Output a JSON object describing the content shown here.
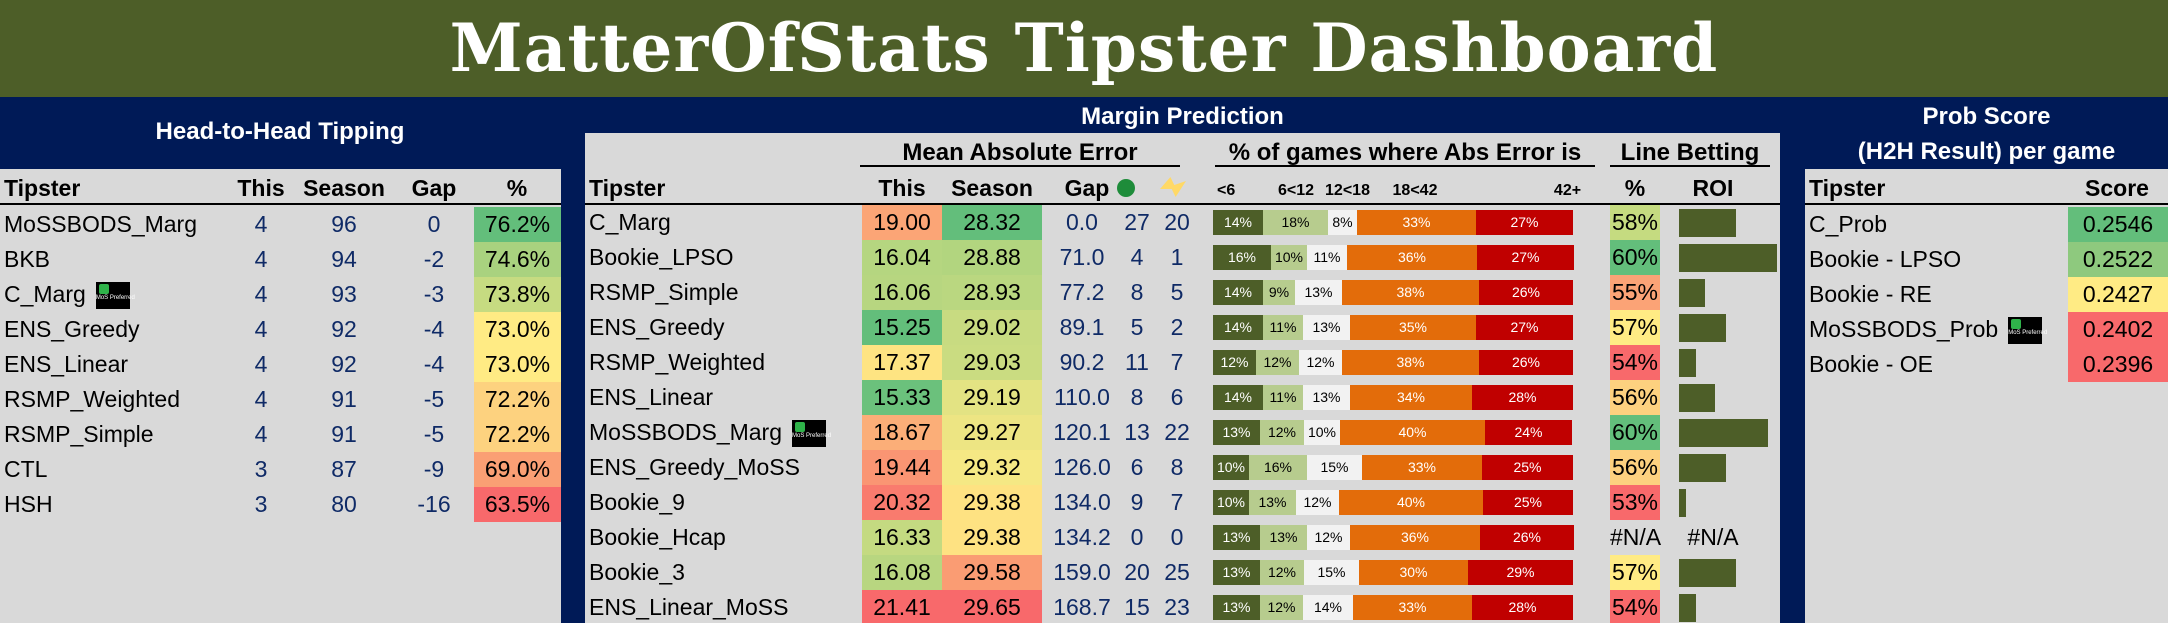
{
  "title": "MatterOfStats Tipster Dashboard",
  "h2h": {
    "section_title": "Head-to-Head Tipping",
    "headers": {
      "tipster": "Tipster",
      "this": "This",
      "season": "Season",
      "gap": "Gap",
      "pct": "%"
    },
    "rows": [
      {
        "tipster": "MoSSBODS_Marg",
        "this": "4",
        "season": "96",
        "gap": "0",
        "pct": "76.2%",
        "color": "#63be7b"
      },
      {
        "tipster": "BKB",
        "this": "4",
        "season": "94",
        "gap": "-2",
        "pct": "74.6%",
        "color": "#a9d27f"
      },
      {
        "tipster": "C_Marg",
        "this": "4",
        "season": "93",
        "gap": "-3",
        "pct": "73.8%",
        "color": "#c6db81",
        "badge": true
      },
      {
        "tipster": "ENS_Greedy",
        "this": "4",
        "season": "92",
        "gap": "-4",
        "pct": "73.0%",
        "color": "#ffeb84"
      },
      {
        "tipster": "ENS_Linear",
        "this": "4",
        "season": "92",
        "gap": "-4",
        "pct": "73.0%",
        "color": "#ffeb84"
      },
      {
        "tipster": "RSMP_Weighted",
        "this": "4",
        "season": "91",
        "gap": "-5",
        "pct": "72.2%",
        "color": "#fdd27f"
      },
      {
        "tipster": "RSMP_Simple",
        "this": "4",
        "season": "91",
        "gap": "-5",
        "pct": "72.2%",
        "color": "#fdd27f"
      },
      {
        "tipster": "CTL",
        "this": "3",
        "season": "87",
        "gap": "-9",
        "pct": "69.0%",
        "color": "#fa9f74"
      },
      {
        "tipster": "HSH",
        "this": "3",
        "season": "80",
        "gap": "-16",
        "pct": "63.5%",
        "color": "#f8696b"
      }
    ]
  },
  "margin": {
    "section_title": "Margin Prediction",
    "group_mae": "Mean Absolute Error",
    "group_pct": "% of games where Abs Error is",
    "group_line": "Line Betting",
    "headers": {
      "tipster": "Tipster",
      "this": "This",
      "season": "Season",
      "gap": "Gap",
      "pct": "%",
      "roi": "ROI"
    },
    "bucket_labels": [
      "<6",
      "6<12",
      "12<18",
      "18<42",
      "42+"
    ],
    "bucket_colors": [
      "#4d5e28",
      "#b7cc8e",
      "#f2f2f2",
      "#e36c0a",
      "#c00000"
    ],
    "bucket_text_colors": [
      "#ffffff",
      "#000000",
      "#000000",
      "#ffffff",
      "#ffffff"
    ],
    "rows": [
      {
        "tipster": "C_Marg",
        "this": "19.00",
        "this_color": "#fba576",
        "season": "28.32",
        "season_color": "#63be7b",
        "gap": "0.0",
        "c1": "27",
        "c2": "20",
        "buckets": [
          14,
          18,
          8,
          33,
          27
        ],
        "pct": "58%",
        "pct_color": "#c5db80",
        "roi": 0.58
      },
      {
        "tipster": "Bookie_LPSO",
        "this": "16.04",
        "this_color": "#b5d680",
        "season": "28.88",
        "season_color": "#b2d57f",
        "gap": "71.0",
        "c1": "4",
        "c2": "1",
        "buckets": [
          16,
          10,
          11,
          36,
          27
        ],
        "pct": "60%",
        "pct_color": "#63be7b",
        "roi": 1.0
      },
      {
        "tipster": "RSMP_Simple",
        "this": "16.06",
        "this_color": "#b7d680",
        "season": "28.93",
        "season_color": "#bad780",
        "gap": "77.2",
        "c1": "8",
        "c2": "5",
        "buckets": [
          14,
          9,
          13,
          38,
          26
        ],
        "pct": "55%",
        "pct_color": "#fba376",
        "roi": 0.27
      },
      {
        "tipster": "ENS_Greedy",
        "this": "15.25",
        "this_color": "#63be7b",
        "season": "29.02",
        "season_color": "#c8db81",
        "gap": "89.1",
        "c1": "5",
        "c2": "2",
        "buckets": [
          14,
          11,
          13,
          35,
          27
        ],
        "pct": "57%",
        "pct_color": "#ffeb84",
        "roi": 0.48
      },
      {
        "tipster": "RSMP_Weighted",
        "this": "17.37",
        "this_color": "#fee482",
        "season": "29.03",
        "season_color": "#cadc81",
        "gap": "90.2",
        "c1": "11",
        "c2": "7",
        "buckets": [
          12,
          12,
          12,
          38,
          26
        ],
        "pct": "54%",
        "pct_color": "#f8696b",
        "roi": 0.17
      },
      {
        "tipster": "ENS_Linear",
        "this": "15.33",
        "this_color": "#6bc17c",
        "season": "29.19",
        "season_color": "#e3e383",
        "gap": "110.0",
        "c1": "8",
        "c2": "6",
        "buckets": [
          14,
          11,
          13,
          34,
          28
        ],
        "pct": "56%",
        "pct_color": "#fdd17f",
        "roi": 0.37
      },
      {
        "tipster": "MoSSBODS_Marg",
        "this": "18.67",
        "this_color": "#fbae78",
        "season": "29.27",
        "season_color": "#ede583",
        "gap": "120.1",
        "c1": "13",
        "c2": "22",
        "buckets": [
          13,
          12,
          10,
          40,
          24
        ],
        "pct": "60%",
        "pct_color": "#63be7b",
        "roi": 0.91,
        "badge": true
      },
      {
        "tipster": "ENS_Greedy_MoSS",
        "this": "19.44",
        "this_color": "#fa9573",
        "season": "29.32",
        "season_color": "#f5e884",
        "gap": "126.0",
        "c1": "6",
        "c2": "8",
        "buckets": [
          10,
          16,
          15,
          33,
          25
        ],
        "pct": "56%",
        "pct_color": "#fdd17f",
        "roi": 0.48
      },
      {
        "tipster": "Bookie_9",
        "this": "20.32",
        "this_color": "#f97b6e",
        "season": "29.38",
        "season_color": "#fee282",
        "gap": "134.0",
        "c1": "9",
        "c2": "7",
        "buckets": [
          10,
          13,
          12,
          40,
          25
        ],
        "pct": "53%",
        "pct_color": "#f8696b",
        "roi": 0.07
      },
      {
        "tipster": "Bookie_Hcap",
        "this": "16.33",
        "this_color": "#c4da81",
        "season": "29.38",
        "season_color": "#fee282",
        "gap": "134.2",
        "c1": "0",
        "c2": "0",
        "buckets": [
          13,
          13,
          12,
          36,
          26
        ],
        "pct": "#N/A",
        "pct_color": "",
        "roi": 0,
        "roi_text": "#N/A"
      },
      {
        "tipster": "Bookie_3",
        "this": "16.08",
        "this_color": "#b8d680",
        "season": "29.58",
        "season_color": "#fa9c73",
        "gap": "159.0",
        "c1": "20",
        "c2": "25",
        "buckets": [
          13,
          12,
          15,
          30,
          29
        ],
        "pct": "57%",
        "pct_color": "#ffeb84",
        "roi": 0.58
      },
      {
        "tipster": "ENS_Linear_MoSS",
        "this": "21.41",
        "this_color": "#f8696b",
        "season": "29.65",
        "season_color": "#f8696b",
        "gap": "168.7",
        "c1": "15",
        "c2": "23",
        "buckets": [
          13,
          12,
          14,
          33,
          28
        ],
        "pct": "54%",
        "pct_color": "#f8696b",
        "roi": 0.17
      }
    ]
  },
  "prob": {
    "section_title_1": "Prob Score",
    "section_title_2": "(H2H Result) per game",
    "headers": {
      "tipster": "Tipster",
      "score": "Score"
    },
    "rows": [
      {
        "tipster": "C_Prob",
        "score": "0.2546",
        "color": "#63be7b"
      },
      {
        "tipster": "Bookie - LPSO",
        "score": "0.2522",
        "color": "#8ec97e"
      },
      {
        "tipster": "Bookie - RE",
        "score": "0.2427",
        "color": "#ffeb84"
      },
      {
        "tipster": "MoSSBODS_Prob",
        "score": "0.2402",
        "color": "#f8696b",
        "badge": true
      },
      {
        "tipster": "Bookie - OE",
        "score": "0.2396",
        "color": "#f8696b"
      }
    ]
  },
  "badge_text": "MoS Preferred",
  "icons": {
    "green_circle": "count-this-icon",
    "lightning": "count-season-icon"
  }
}
